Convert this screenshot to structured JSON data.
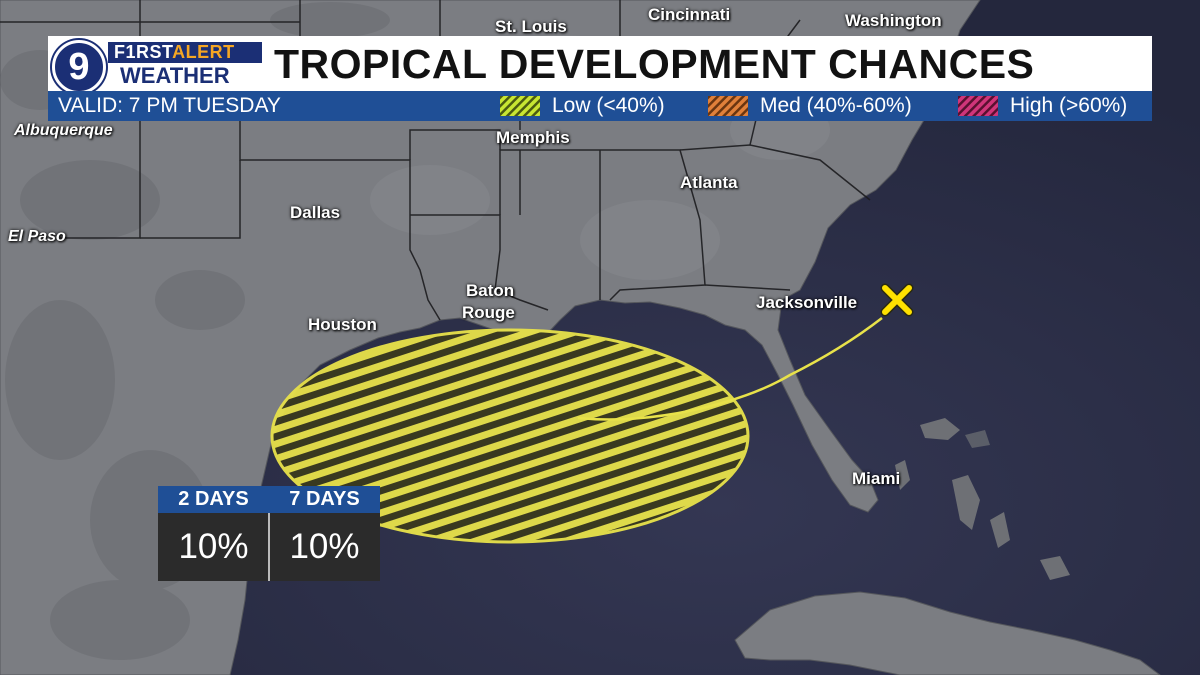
{
  "branding": {
    "station_number": "9",
    "first_text": "F1RST",
    "alert_text": "ALERT",
    "weather_text": "WEATHER"
  },
  "header": {
    "title": "TROPICAL DEVELOPMENT CHANCES",
    "valid": "VALID: 7 PM TUESDAY"
  },
  "legend": [
    {
      "label": "Low (<40%)",
      "color": "#c8e632"
    },
    {
      "label": "Med (40%-60%)",
      "color": "#e0803a"
    },
    {
      "label": "High (>60%)",
      "color": "#d0357a"
    }
  ],
  "cities": [
    {
      "name": "St. Louis"
    },
    {
      "name": "Cincinnati"
    },
    {
      "name": "Washington"
    },
    {
      "name": "Albuquerque"
    },
    {
      "name": "Memphis"
    },
    {
      "name": "Atlanta"
    },
    {
      "name": "Dallas"
    },
    {
      "name": "El Paso"
    },
    {
      "name": "Baton"
    },
    {
      "name": "Rouge"
    },
    {
      "name": "Houston"
    },
    {
      "name": "Jacksonville"
    },
    {
      "name": "Miami"
    }
  ],
  "outlook_area": {
    "category": "Low",
    "color": "#e8e24a"
  },
  "marker": {
    "icon": "x-marker-icon",
    "color": "#ffe100"
  },
  "chances": {
    "headers": [
      "2 DAYS",
      "7 DAYS"
    ],
    "values": [
      "10%",
      "10%"
    ]
  },
  "colors": {
    "land": "#7b7d82",
    "water": "#2a2d45",
    "accent_blue": "#1f4f96",
    "navy": "#1b2f75"
  }
}
